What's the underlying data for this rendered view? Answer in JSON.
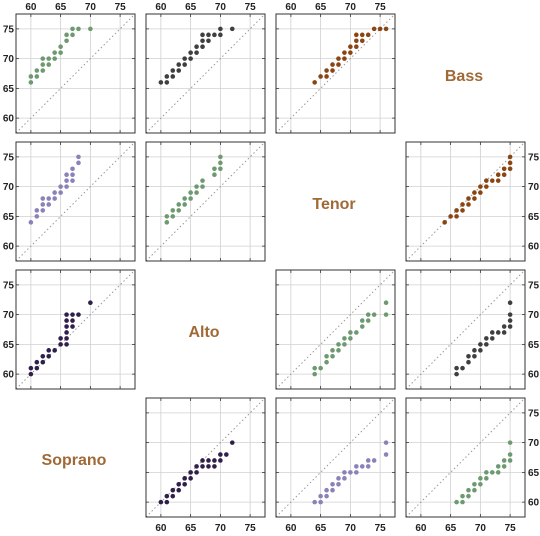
{
  "figure": {
    "axis_ticks": [
      "60",
      "65",
      "70",
      "75"
    ],
    "voices": [
      "Bass",
      "Tenor",
      "Alto",
      "Soprano"
    ],
    "label_color": "#a06a37"
  },
  "chart_data": [
    {
      "type": "scatter",
      "panel": "Bass vs Tenor",
      "x_voice": "Tenor",
      "y_voice": "Bass",
      "xlim": [
        57.5,
        77.5
      ],
      "ylim": [
        57.5,
        77.5
      ],
      "x_ticks": [
        60,
        65,
        70,
        75
      ],
      "y_ticks": [
        60,
        65,
        70,
        75
      ],
      "diagonal": true,
      "grid": true,
      "color": "#6d9a70",
      "points": [
        [
          60,
          66
        ],
        [
          60,
          67
        ],
        [
          61,
          67
        ],
        [
          61,
          68
        ],
        [
          62,
          68
        ],
        [
          62,
          69
        ],
        [
          62,
          70
        ],
        [
          63,
          69
        ],
        [
          63,
          70
        ],
        [
          64,
          70
        ],
        [
          64,
          71
        ],
        [
          65,
          71
        ],
        [
          65,
          72
        ],
        [
          66,
          73
        ],
        [
          66,
          74
        ],
        [
          67,
          74
        ],
        [
          67,
          75
        ],
        [
          68,
          75
        ],
        [
          70,
          75
        ]
      ]
    },
    {
      "type": "scatter",
      "panel": "Bass vs Alto",
      "x_voice": "Alto",
      "y_voice": "Bass",
      "xlim": [
        57.5,
        77.5
      ],
      "ylim": [
        57.5,
        77.5
      ],
      "x_ticks": [
        60,
        65,
        70,
        75
      ],
      "y_ticks": [
        60,
        65,
        70,
        75
      ],
      "diagonal": true,
      "grid": true,
      "color": "#3f3f3f",
      "points": [
        [
          60,
          66
        ],
        [
          61,
          66
        ],
        [
          61,
          67
        ],
        [
          62,
          67
        ],
        [
          62,
          68
        ],
        [
          63,
          68
        ],
        [
          63,
          69
        ],
        [
          64,
          69
        ],
        [
          64,
          70
        ],
        [
          65,
          70
        ],
        [
          65,
          71
        ],
        [
          66,
          71
        ],
        [
          66,
          72
        ],
        [
          67,
          72
        ],
        [
          67,
          73
        ],
        [
          67,
          74
        ],
        [
          68,
          73
        ],
        [
          68,
          74
        ],
        [
          69,
          74
        ],
        [
          70,
          74
        ],
        [
          70,
          75
        ],
        [
          72,
          75
        ]
      ]
    },
    {
      "type": "scatter",
      "panel": "Bass vs Soprano",
      "x_voice": "Soprano",
      "y_voice": "Bass",
      "xlim": [
        57.5,
        77.5
      ],
      "ylim": [
        57.5,
        77.5
      ],
      "x_ticks": [
        60,
        65,
        70,
        75
      ],
      "y_ticks": [
        60,
        65,
        70,
        75
      ],
      "diagonal": true,
      "grid": true,
      "color": "#8b4513",
      "points": [
        [
          64,
          66
        ],
        [
          65,
          67
        ],
        [
          66,
          67
        ],
        [
          66,
          68
        ],
        [
          67,
          68
        ],
        [
          67,
          69
        ],
        [
          68,
          69
        ],
        [
          68,
          70
        ],
        [
          69,
          70
        ],
        [
          69,
          71
        ],
        [
          70,
          71
        ],
        [
          70,
          72
        ],
        [
          71,
          72
        ],
        [
          71,
          73
        ],
        [
          71,
          74
        ],
        [
          72,
          73
        ],
        [
          72,
          74
        ],
        [
          73,
          74
        ],
        [
          74,
          75
        ],
        [
          75,
          75
        ],
        [
          76,
          75
        ]
      ]
    },
    {
      "type": "scatter",
      "panel": "Tenor vs Bass",
      "x_voice": "Tenor",
      "y_voice": "Bass",
      "xlim": [
        57.5,
        77.5
      ],
      "ylim": [
        57.5,
        77.5
      ],
      "x_ticks": [
        60,
        65,
        70,
        75
      ],
      "y_ticks": [
        60,
        65,
        70,
        75
      ],
      "diagonal": true,
      "grid": true,
      "color": "#8a82b8",
      "points": [
        [
          60,
          64
        ],
        [
          61,
          65
        ],
        [
          61,
          66
        ],
        [
          62,
          66
        ],
        [
          62,
          67
        ],
        [
          62,
          68
        ],
        [
          63,
          67
        ],
        [
          63,
          68
        ],
        [
          64,
          68
        ],
        [
          64,
          69
        ],
        [
          65,
          69
        ],
        [
          65,
          70
        ],
        [
          66,
          70
        ],
        [
          66,
          71
        ],
        [
          66,
          72
        ],
        [
          67,
          71
        ],
        [
          67,
          72
        ],
        [
          67,
          73
        ],
        [
          68,
          74
        ],
        [
          68,
          75
        ]
      ]
    },
    {
      "type": "scatter",
      "panel": "Tenor vs Alto",
      "x_voice": "Alto",
      "y_voice": "Tenor",
      "xlim": [
        57.5,
        77.5
      ],
      "ylim": [
        57.5,
        77.5
      ],
      "x_ticks": [
        60,
        65,
        70,
        75
      ],
      "y_ticks": [
        60,
        65,
        70,
        75
      ],
      "diagonal": true,
      "grid": true,
      "color": "#6d9a70",
      "points": [
        [
          61,
          64
        ],
        [
          61,
          65
        ],
        [
          62,
          65
        ],
        [
          62,
          66
        ],
        [
          63,
          66
        ],
        [
          63,
          67
        ],
        [
          64,
          67
        ],
        [
          64,
          68
        ],
        [
          65,
          68
        ],
        [
          65,
          69
        ],
        [
          66,
          69
        ],
        [
          66,
          70
        ],
        [
          67,
          70
        ],
        [
          67,
          71
        ],
        [
          69,
          72
        ],
        [
          69,
          73
        ],
        [
          70,
          73
        ],
        [
          70,
          74
        ],
        [
          70,
          75
        ]
      ]
    },
    {
      "type": "scatter",
      "panel": "Tenor vs Soprano",
      "x_voice": "Soprano",
      "y_voice": "Tenor",
      "xlim": [
        57.5,
        77.5
      ],
      "ylim": [
        57.5,
        77.5
      ],
      "x_ticks": [
        60,
        65,
        70,
        75
      ],
      "y_ticks": [
        60,
        65,
        70,
        75
      ],
      "diagonal": true,
      "grid": true,
      "color": "#8b4513",
      "points": [
        [
          64,
          64
        ],
        [
          65,
          65
        ],
        [
          66,
          65
        ],
        [
          66,
          66
        ],
        [
          67,
          66
        ],
        [
          67,
          67
        ],
        [
          68,
          67
        ],
        [
          68,
          68
        ],
        [
          69,
          68
        ],
        [
          69,
          69
        ],
        [
          70,
          69
        ],
        [
          70,
          70
        ],
        [
          71,
          70
        ],
        [
          71,
          71
        ],
        [
          72,
          71
        ],
        [
          73,
          71
        ],
        [
          73,
          72
        ],
        [
          74,
          72
        ],
        [
          74,
          73
        ],
        [
          75,
          73
        ],
        [
          75,
          74
        ],
        [
          75,
          75
        ]
      ]
    },
    {
      "type": "scatter",
      "panel": "Alto vs Bass",
      "x_voice": "Alto",
      "y_voice": "Bass",
      "xlim": [
        57.5,
        77.5
      ],
      "ylim": [
        57.5,
        77.5
      ],
      "x_ticks": [
        60,
        65,
        70,
        75
      ],
      "y_ticks": [
        60,
        65,
        70,
        75
      ],
      "diagonal": true,
      "grid": true,
      "color": "#2f1f4a",
      "points": [
        [
          60,
          60
        ],
        [
          60,
          61
        ],
        [
          61,
          61
        ],
        [
          61,
          62
        ],
        [
          62,
          62
        ],
        [
          62,
          63
        ],
        [
          63,
          63
        ],
        [
          63,
          64
        ],
        [
          64,
          64
        ],
        [
          65,
          65
        ],
        [
          65,
          66
        ],
        [
          66,
          65
        ],
        [
          66,
          66
        ],
        [
          66,
          67
        ],
        [
          66,
          68
        ],
        [
          66,
          69
        ],
        [
          66,
          70
        ],
        [
          67,
          68
        ],
        [
          67,
          69
        ],
        [
          67,
          70
        ],
        [
          68,
          70
        ],
        [
          70,
          72
        ]
      ]
    },
    {
      "type": "scatter",
      "panel": "Alto vs Tenor",
      "x_voice": "Tenor",
      "y_voice": "Alto",
      "xlim": [
        57.5,
        77.5
      ],
      "ylim": [
        57.5,
        77.5
      ],
      "x_ticks": [
        60,
        65,
        70,
        75
      ],
      "y_ticks": [
        60,
        65,
        70,
        75
      ],
      "diagonal": true,
      "grid": true,
      "color": "#6d9a70",
      "points": [
        [
          64,
          60
        ],
        [
          64,
          61
        ],
        [
          65,
          61
        ],
        [
          66,
          62
        ],
        [
          66,
          63
        ],
        [
          67,
          63
        ],
        [
          67,
          64
        ],
        [
          68,
          64
        ],
        [
          68,
          65
        ],
        [
          69,
          65
        ],
        [
          69,
          66
        ],
        [
          70,
          66
        ],
        [
          70,
          67
        ],
        [
          71,
          67
        ],
        [
          72,
          68
        ],
        [
          72,
          69
        ],
        [
          73,
          69
        ],
        [
          73,
          70
        ],
        [
          74,
          70
        ],
        [
          76,
          70
        ],
        [
          76,
          72
        ]
      ]
    },
    {
      "type": "scatter",
      "panel": "Alto vs Soprano",
      "x_voice": "Soprano",
      "y_voice": "Alto",
      "xlim": [
        57.5,
        77.5
      ],
      "ylim": [
        57.5,
        77.5
      ],
      "x_ticks": [
        60,
        65,
        70,
        75
      ],
      "y_ticks": [
        60,
        65,
        70,
        75
      ],
      "diagonal": true,
      "grid": true,
      "color": "#3f3f3f",
      "points": [
        [
          66,
          60
        ],
        [
          66,
          61
        ],
        [
          67,
          61
        ],
        [
          68,
          62
        ],
        [
          68,
          63
        ],
        [
          69,
          63
        ],
        [
          69,
          64
        ],
        [
          70,
          64
        ],
        [
          70,
          65
        ],
        [
          71,
          65
        ],
        [
          71,
          66
        ],
        [
          72,
          66
        ],
        [
          72,
          67
        ],
        [
          73,
          67
        ],
        [
          74,
          67
        ],
        [
          74,
          68
        ],
        [
          75,
          68
        ],
        [
          75,
          69
        ],
        [
          75,
          70
        ],
        [
          75,
          72
        ]
      ]
    },
    {
      "type": "scatter",
      "panel": "Soprano vs Alto",
      "x_voice": "Alto",
      "y_voice": "Soprano",
      "xlim": [
        57.5,
        77.5
      ],
      "ylim": [
        57.5,
        77.5
      ],
      "x_ticks": [
        60,
        65,
        70,
        75
      ],
      "y_ticks": [
        60,
        65,
        70,
        75
      ],
      "diagonal": true,
      "grid": true,
      "color": "#2f1f4a",
      "points": [
        [
          60,
          60
        ],
        [
          61,
          60
        ],
        [
          61,
          61
        ],
        [
          62,
          61
        ],
        [
          62,
          62
        ],
        [
          63,
          62
        ],
        [
          63,
          63
        ],
        [
          64,
          63
        ],
        [
          64,
          64
        ],
        [
          65,
          64
        ],
        [
          65,
          65
        ],
        [
          66,
          65
        ],
        [
          66,
          66
        ],
        [
          67,
          66
        ],
        [
          67,
          67
        ],
        [
          68,
          66
        ],
        [
          68,
          67
        ],
        [
          69,
          66
        ],
        [
          69,
          67
        ],
        [
          70,
          67
        ],
        [
          70,
          68
        ],
        [
          71,
          68
        ],
        [
          72,
          70
        ]
      ]
    },
    {
      "type": "scatter",
      "panel": "Soprano vs Tenor",
      "x_voice": "Tenor",
      "y_voice": "Soprano",
      "xlim": [
        57.5,
        77.5
      ],
      "ylim": [
        57.5,
        77.5
      ],
      "x_ticks": [
        60,
        65,
        70,
        75
      ],
      "y_ticks": [
        60,
        65,
        70,
        75
      ],
      "diagonal": true,
      "grid": true,
      "color": "#8a82b8",
      "points": [
        [
          64,
          60
        ],
        [
          65,
          60
        ],
        [
          65,
          61
        ],
        [
          66,
          61
        ],
        [
          66,
          62
        ],
        [
          67,
          62
        ],
        [
          67,
          63
        ],
        [
          68,
          63
        ],
        [
          68,
          64
        ],
        [
          69,
          64
        ],
        [
          69,
          65
        ],
        [
          70,
          65
        ],
        [
          71,
          65
        ],
        [
          71,
          66
        ],
        [
          72,
          66
        ],
        [
          73,
          66
        ],
        [
          73,
          67
        ],
        [
          74,
          67
        ],
        [
          76,
          68
        ],
        [
          76,
          70
        ]
      ]
    },
    {
      "type": "scatter",
      "panel": "Soprano vs Bass",
      "x_voice": "Bass",
      "y_voice": "Soprano",
      "xlim": [
        57.5,
        77.5
      ],
      "ylim": [
        57.5,
        77.5
      ],
      "x_ticks": [
        60,
        65,
        70,
        75
      ],
      "y_ticks": [
        60,
        65,
        70,
        75
      ],
      "diagonal": true,
      "grid": true,
      "color": "#6d9a70",
      "points": [
        [
          66,
          60
        ],
        [
          67,
          60
        ],
        [
          67,
          61
        ],
        [
          68,
          61
        ],
        [
          68,
          62
        ],
        [
          69,
          62
        ],
        [
          69,
          63
        ],
        [
          70,
          63
        ],
        [
          70,
          64
        ],
        [
          71,
          64
        ],
        [
          71,
          65
        ],
        [
          72,
          65
        ],
        [
          73,
          65
        ],
        [
          73,
          66
        ],
        [
          74,
          66
        ],
        [
          74,
          67
        ],
        [
          75,
          67
        ],
        [
          75,
          68
        ],
        [
          75,
          70
        ]
      ]
    }
  ]
}
